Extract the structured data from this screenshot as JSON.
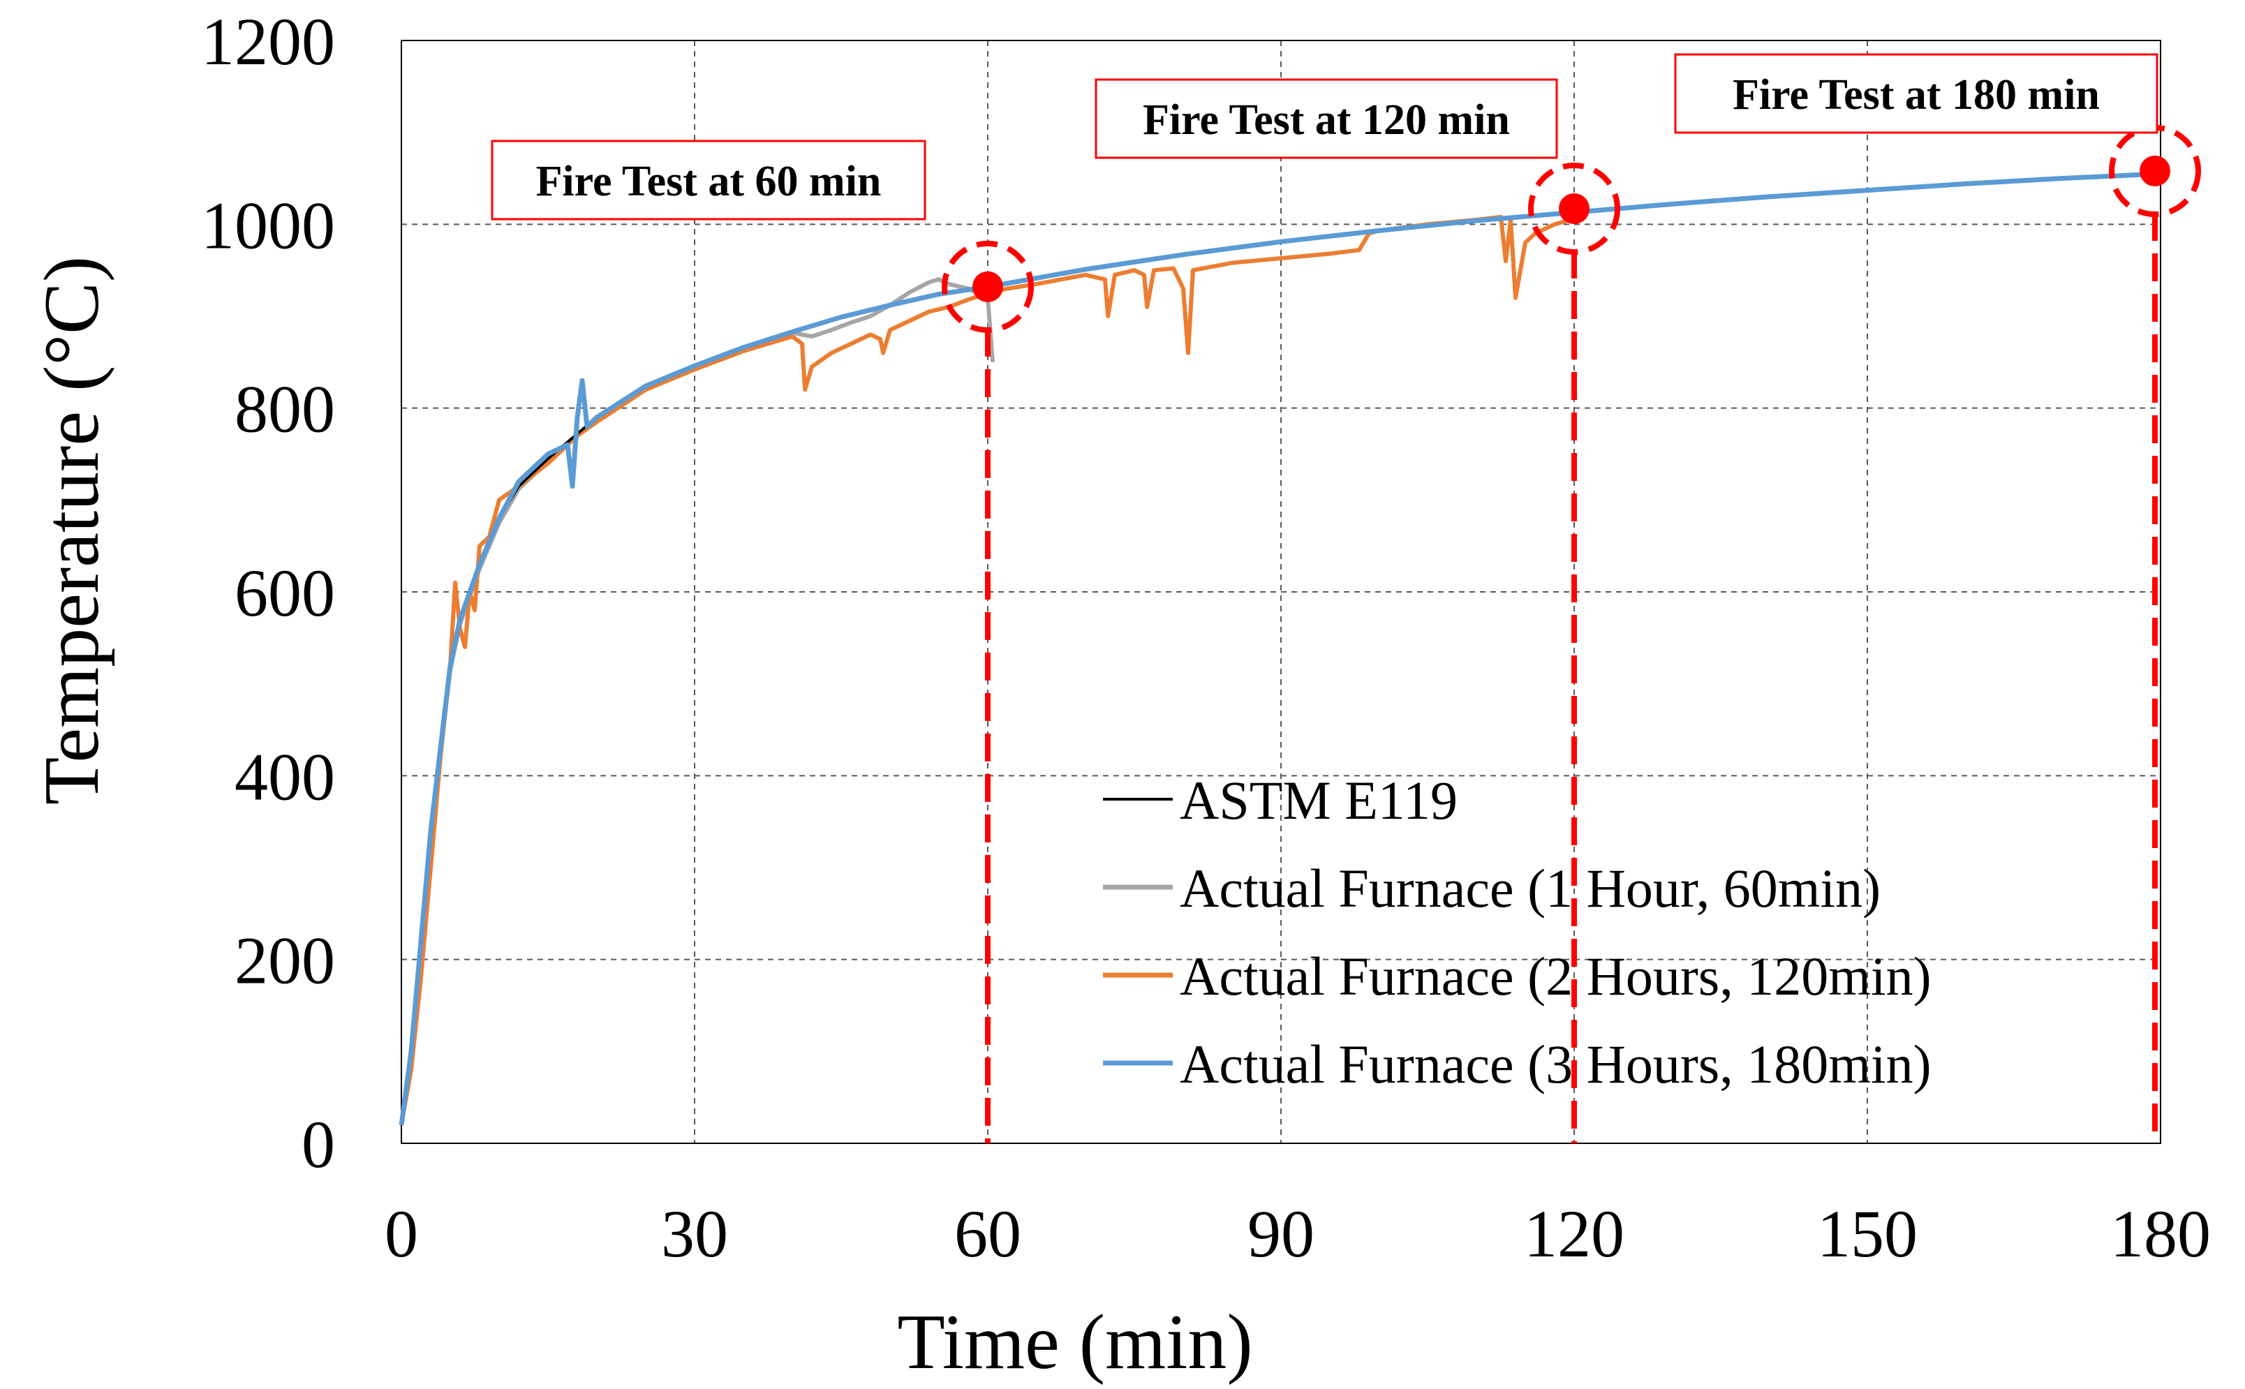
{
  "chart_data": {
    "type": "line",
    "title": "",
    "xlabel": "Time (min)",
    "ylabel": "Temperature (°C)",
    "xlim": [
      0,
      180
    ],
    "ylim": [
      0,
      1200
    ],
    "xticks": [
      0,
      30,
      60,
      90,
      120,
      150,
      180
    ],
    "yticks": [
      0,
      200,
      400,
      600,
      800,
      1000,
      1200
    ],
    "grid": true,
    "legend_position": "bottom-right",
    "series": [
      {
        "name": "ASTM E119",
        "color": "#000000",
        "x": [
          0,
          1,
          2,
          3,
          4,
          5,
          6,
          8,
          10,
          12,
          15,
          18,
          20,
          25,
          30,
          35,
          40,
          45,
          50,
          55,
          60,
          70,
          80,
          90,
          100,
          110,
          120,
          130,
          140,
          150,
          160,
          170,
          180
        ],
        "y": [
          20,
          100,
          220,
          340,
          430,
          520,
          570,
          630,
          680,
          715,
          745,
          772,
          790,
          824,
          846,
          866,
          883,
          899,
          912,
          924,
          932,
          951,
          967,
          981,
          993,
          1004,
          1013,
          1022,
          1030,
          1037,
          1044,
          1050,
          1055
        ]
      },
      {
        "name": "Actual Furnace (1 Hour, 60min)",
        "color": "#a6a6a6",
        "x": [
          0,
          1,
          2,
          3,
          4,
          5,
          6,
          8,
          10,
          12,
          15,
          18,
          20,
          25,
          30,
          35,
          40,
          42,
          44,
          46,
          48,
          50,
          52,
          54,
          55,
          56,
          58,
          59,
          60,
          60.5
        ],
        "y": [
          20,
          100,
          215,
          335,
          425,
          515,
          565,
          625,
          675,
          712,
          742,
          770,
          788,
          822,
          845,
          864,
          882,
          878,
          885,
          893,
          900,
          912,
          926,
          937,
          940,
          935,
          930,
          925,
          920,
          850
        ]
      },
      {
        "name": "Actual Furnace (2 Hours, 120min)",
        "color": "#ed7d31",
        "x": [
          0,
          1,
          2,
          3,
          4,
          5,
          5.5,
          6,
          6.5,
          7,
          7.5,
          8,
          9,
          10,
          12,
          15,
          18,
          20,
          25,
          30,
          35,
          40,
          41,
          41.3,
          42,
          44,
          46,
          48,
          49,
          49.3,
          50,
          52,
          54,
          56,
          58,
          60,
          62,
          65,
          70,
          72,
          72.3,
          73,
          75,
          76,
          76.3,
          77,
          79,
          80,
          80.5,
          81,
          85,
          90,
          95,
          98,
          99,
          100,
          105,
          110,
          112.5,
          113,
          113.5,
          114,
          115,
          116,
          117,
          118,
          119,
          120
        ],
        "y": [
          20,
          80,
          180,
          300,
          420,
          520,
          610,
          560,
          540,
          600,
          580,
          650,
          660,
          700,
          715,
          740,
          770,
          785,
          820,
          842,
          862,
          878,
          870,
          820,
          845,
          860,
          870,
          880,
          875,
          860,
          885,
          895,
          905,
          910,
          918,
          925,
          930,
          935,
          945,
          940,
          900,
          945,
          950,
          945,
          910,
          950,
          952,
          930,
          860,
          950,
          958,
          963,
          968,
          972,
          990,
          993,
          1000,
          1005,
          1008,
          960,
          1005,
          920,
          980,
          990,
          995,
          1000,
          1003,
          1006
        ]
      },
      {
        "name": "Actual Furnace (3 Hours, 180min)",
        "color": "#5b9bd5",
        "x": [
          0,
          1,
          2,
          3,
          4,
          5,
          6,
          8,
          10,
          12,
          15,
          17,
          17.5,
          18,
          18.5,
          19,
          20,
          25,
          30,
          35,
          40,
          45,
          50,
          55,
          60,
          70,
          80,
          90,
          100,
          110,
          120,
          130,
          140,
          150,
          160,
          170,
          180
        ],
        "y": [
          20,
          100,
          220,
          340,
          430,
          520,
          570,
          630,
          680,
          720,
          750,
          760,
          715,
          790,
          830,
          780,
          790,
          824,
          846,
          866,
          883,
          899,
          912,
          924,
          932,
          951,
          967,
          981,
          993,
          1004,
          1013,
          1022,
          1030,
          1037,
          1044,
          1050,
          1055
        ]
      }
    ],
    "annotations": [
      {
        "text": "Fire Test at 60 min",
        "time": 60,
        "temperature": 932,
        "color": "#ff0000"
      },
      {
        "text": "Fire Test at 120 min",
        "time": 120,
        "temperature": 1017,
        "color": "#ff0000"
      },
      {
        "text": "Fire Test at 180 min",
        "time": 180,
        "temperature": 1058,
        "color": "#ff0000"
      }
    ]
  }
}
